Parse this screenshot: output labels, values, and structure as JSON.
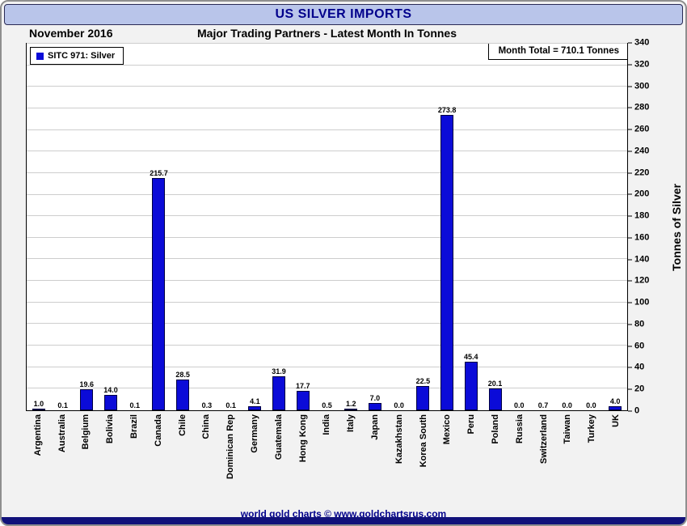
{
  "window": {
    "title": "US SILVER IMPORTS",
    "date_label": "November 2016",
    "subtitle": "Major Trading Partners - Latest Month In Tonnes",
    "footer": "world gold charts © www.goldchartsrus.com"
  },
  "legend": {
    "label": "SITC 971: Silver",
    "swatch_color": "#0b0bd8"
  },
  "annotations": {
    "month_total": "Month Total = 710.1 Tonnes"
  },
  "colors": {
    "titlebar_bg": "#b9c5ea",
    "navy_text": "#00008b",
    "bar_fill": "#0b0bd8",
    "bottom_bar": "#11117a",
    "gridline": "#cdcdcd"
  },
  "chart_data": {
    "type": "bar",
    "title": "US SILVER IMPORTS",
    "subtitle": "Major Trading Partners - Latest Month In Tonnes",
    "series_label": "SITC 971: Silver",
    "categories": [
      "Argentina",
      "Australia",
      "Belgium",
      "Bolivia",
      "Brazil",
      "Canada",
      "Chile",
      "China",
      "Dominican Rep",
      "Germany",
      "Guatemala",
      "Hong Kong",
      "India",
      "Italy",
      "Japan",
      "Kazakhstan",
      "Korea South",
      "Mexico",
      "Peru",
      "Poland",
      "Russia",
      "Switzerland",
      "Taiwan",
      "Turkey",
      "UK"
    ],
    "values": [
      1.0,
      0.1,
      19.6,
      14.0,
      0.1,
      215.7,
      28.5,
      0.3,
      0.1,
      4.1,
      31.9,
      17.7,
      0.5,
      1.2,
      7.0,
      0.0,
      22.5,
      273.8,
      45.4,
      20.1,
      0.0,
      0.7,
      0.0,
      0.0,
      4.0
    ],
    "xlabel": "",
    "ylabel": "Tonnes of Silver",
    "ylim": [
      0,
      340
    ],
    "ytick_step": 20,
    "grid": true,
    "legend_position": "top-left",
    "month_total": 710.1,
    "value_label_decimals": 1
  }
}
